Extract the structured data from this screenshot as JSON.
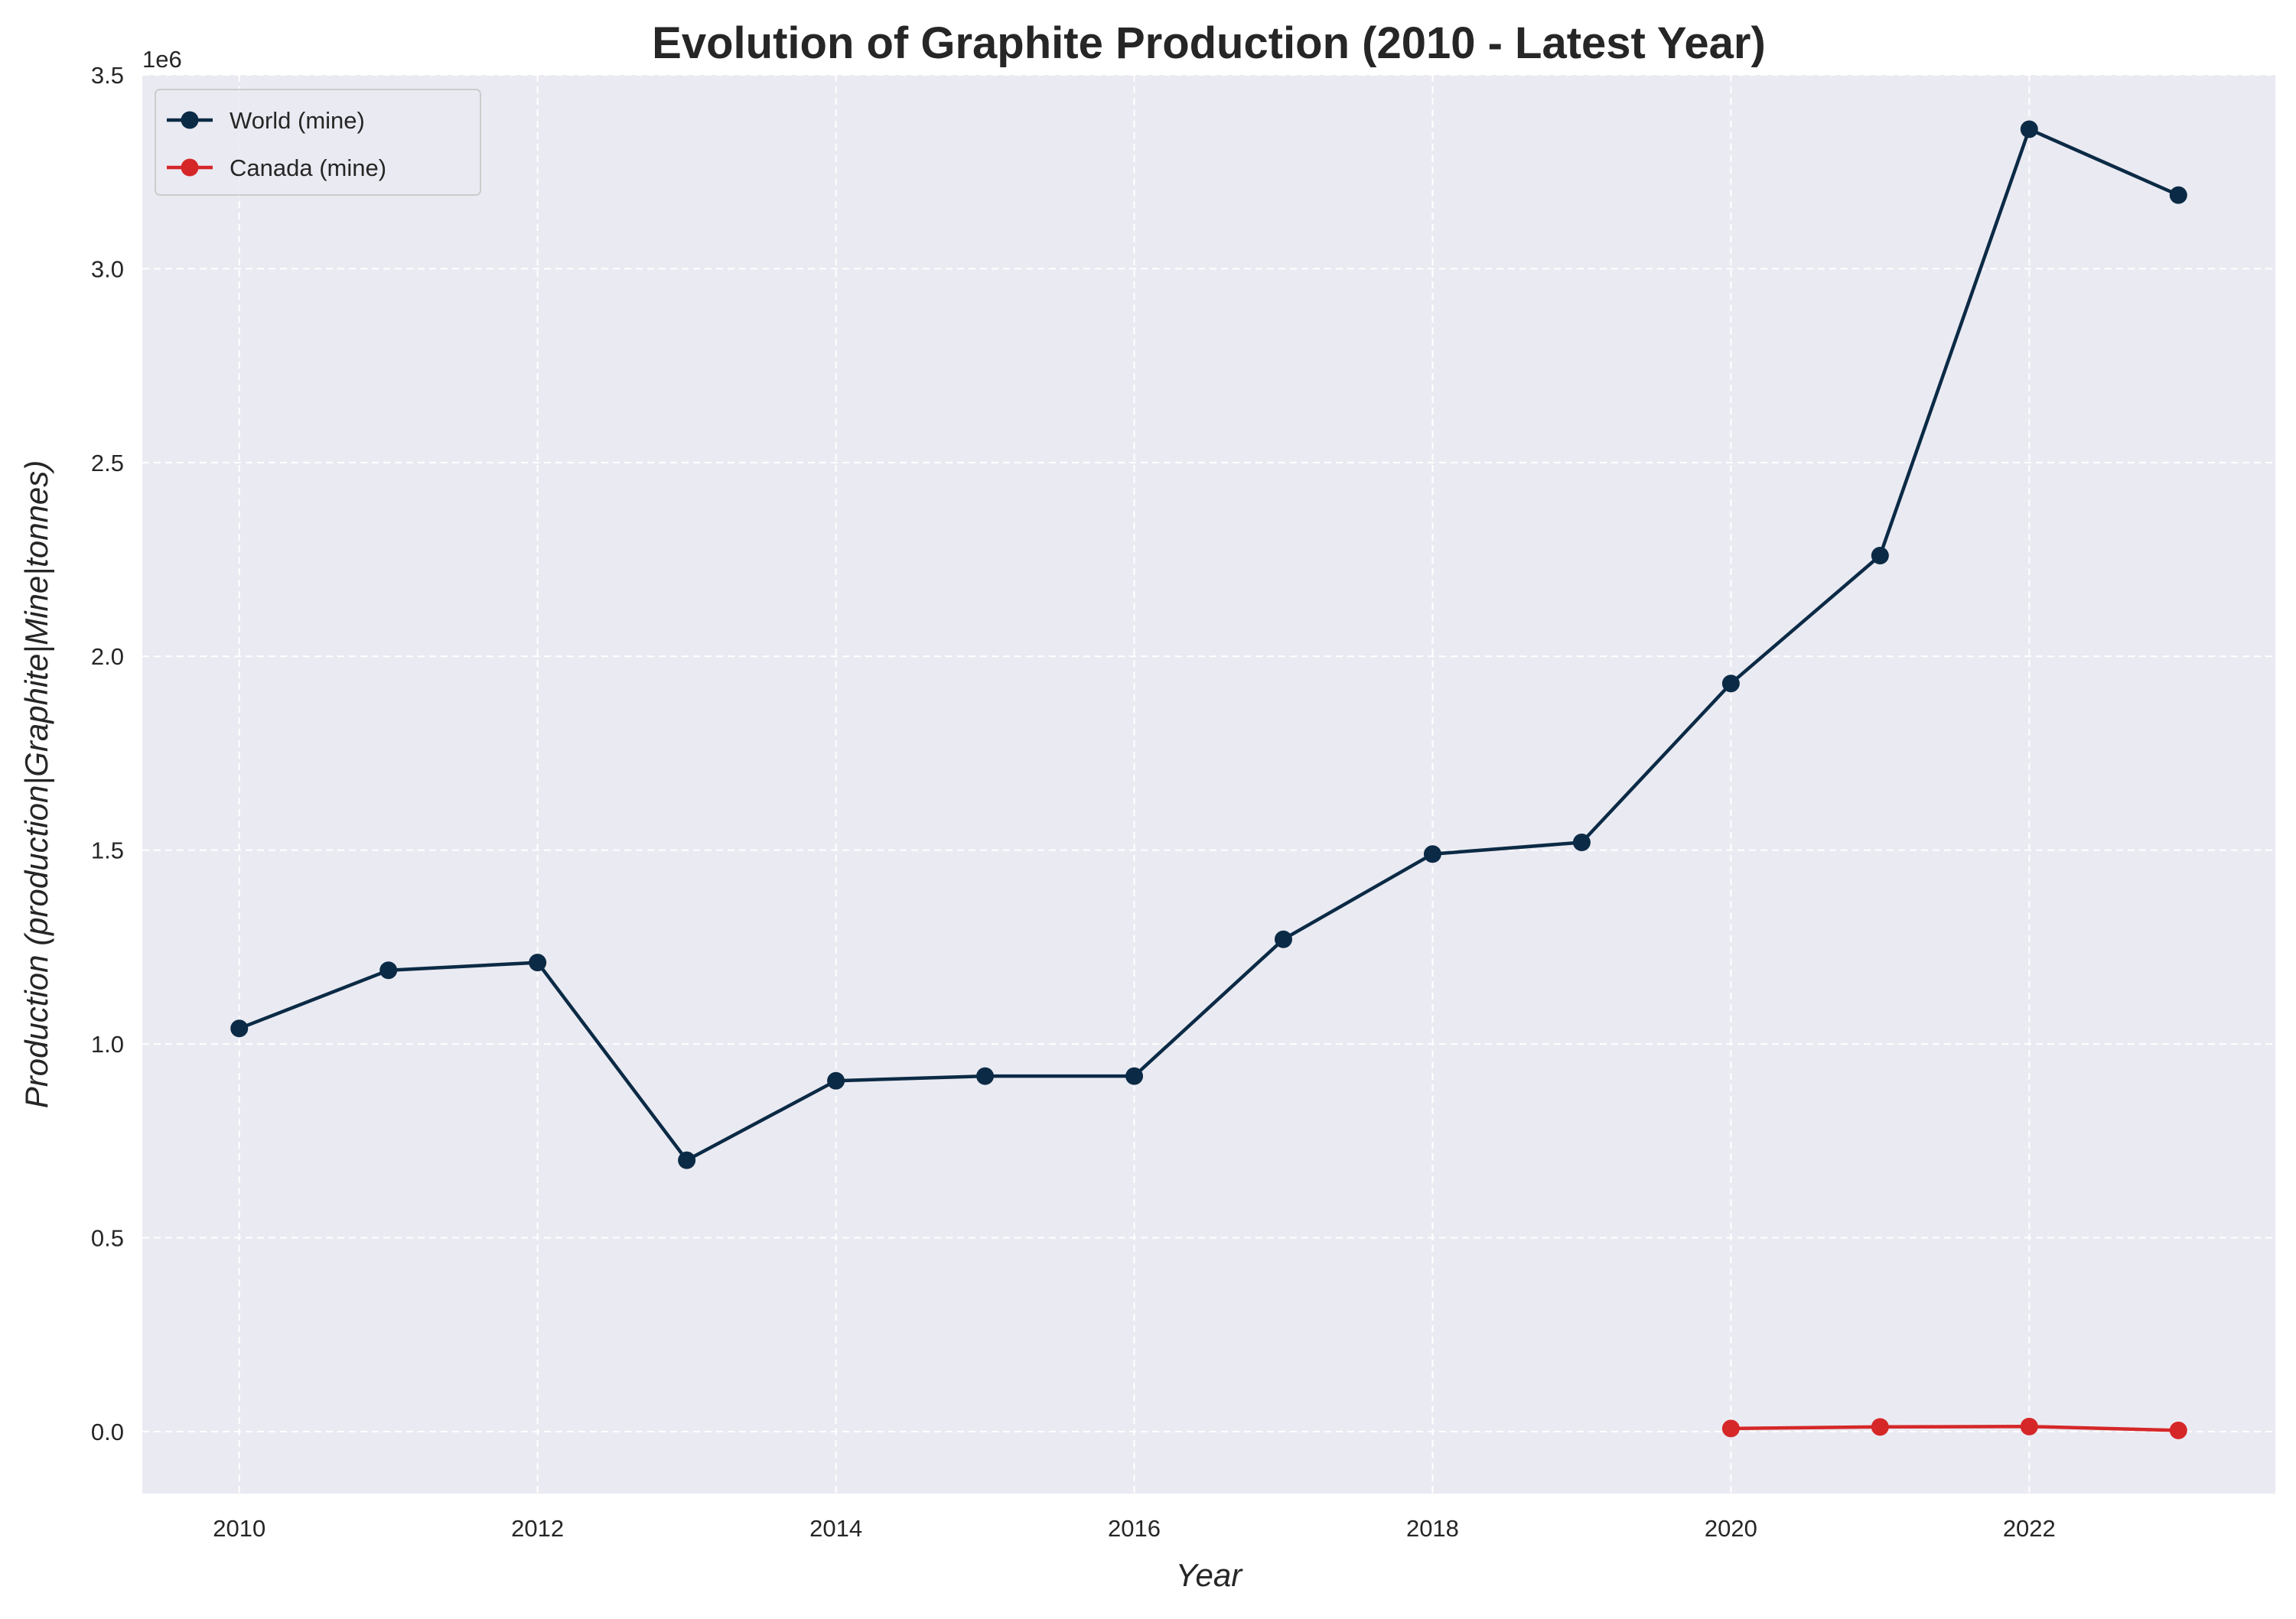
{
  "chart_data": {
    "type": "line",
    "title": "Evolution of Graphite Production (2010 - Latest Year)",
    "xlabel": "Year",
    "ylabel": "Production (production|Graphite|Mine|tonnes)",
    "y_offset_label": "1e6",
    "xlim": [
      2009.35,
      2023.65
    ],
    "ylim": [
      -0.16,
      3.5
    ],
    "x_ticks": [
      2010,
      2012,
      2014,
      2016,
      2018,
      2020,
      2022
    ],
    "x_tick_labels": [
      "2010",
      "2012",
      "2014",
      "2016",
      "2018",
      "2020",
      "2022"
    ],
    "y_ticks": [
      0.0,
      0.5,
      1.0,
      1.5,
      2.0,
      2.5,
      3.0,
      3.5
    ],
    "y_tick_labels": [
      "0.0",
      "0.5",
      "1.0",
      "1.5",
      "2.0",
      "2.5",
      "3.0",
      "3.5"
    ],
    "grid": true,
    "grid_style": "dashed",
    "background": "#eaeaf2",
    "legend_position": "top-left",
    "series": [
      {
        "name": "World (mine)",
        "color": "#0b2a45",
        "x": [
          2010,
          2011,
          2012,
          2013,
          2014,
          2015,
          2016,
          2017,
          2018,
          2019,
          2020,
          2021,
          2022,
          2023
        ],
        "y": [
          1.04,
          1.19,
          1.21,
          0.7,
          0.905,
          0.917,
          0.917,
          1.27,
          1.49,
          1.52,
          1.93,
          2.26,
          3.36,
          3.19
        ]
      },
      {
        "name": "Canada (mine)",
        "color": "#d62728",
        "x": [
          2020,
          2021,
          2022,
          2023
        ],
        "y": [
          0.008,
          0.012,
          0.013,
          0.003
        ]
      }
    ]
  }
}
